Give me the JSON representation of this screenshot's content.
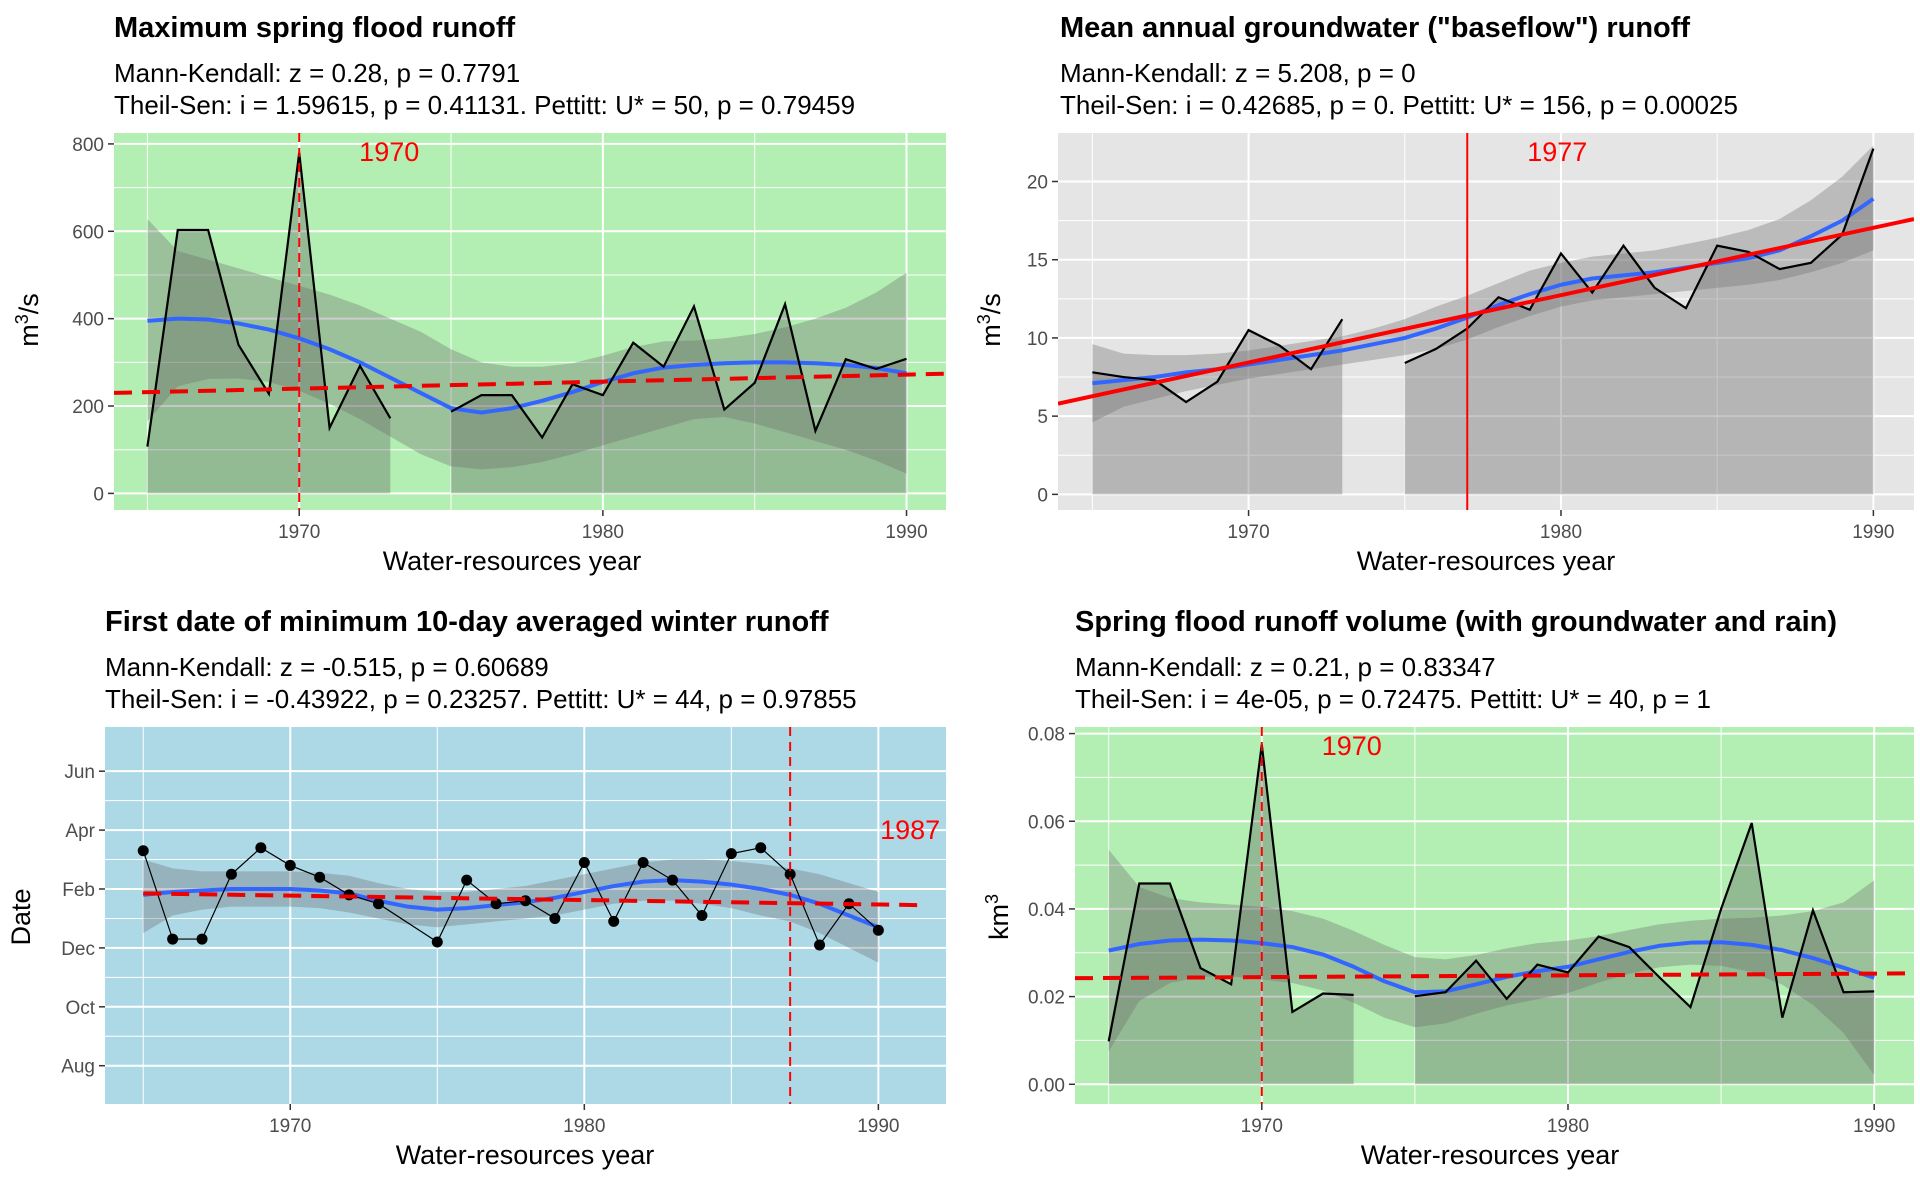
{
  "chart_data": [
    {
      "type": "line",
      "title": "Maximum spring flood runoff",
      "stats_line1": "Mann-Kendall: z = 0.28, p = 0.7791",
      "stats_line2": "Theil-Sen: i = 1.59615, p = 0.41131. Pettitt: U* = 50, p = 0.79459",
      "xlabel": "Water-resources year",
      "ylabel_base": "m",
      "ylabel_sup": "3",
      "ylabel_tail": "/s",
      "panel_background": "#b3eeb3",
      "xlim": [
        1963.9,
        1991.3
      ],
      "ylim": [
        -38,
        825
      ],
      "x_ticks": [
        1970,
        1980,
        1990
      ],
      "x_tick_labels": [
        "1970",
        "1980",
        "1990"
      ],
      "y_ticks": [
        0,
        200,
        400,
        600,
        800
      ],
      "y_tick_labels": [
        "0",
        "200",
        "400",
        "600",
        "800"
      ],
      "series_observed": [
        {
          "x": [
            1965,
            1966,
            1967,
            1968,
            1969,
            1970,
            1971,
            1972,
            1973
          ],
          "y": [
            107,
            603,
            603,
            340,
            228,
            780,
            150,
            292,
            172
          ]
        },
        {
          "x": [
            1975,
            1976,
            1977,
            1978,
            1979,
            1980,
            1981,
            1982,
            1983,
            1984,
            1985,
            1986,
            1987,
            1988,
            1989,
            1990
          ],
          "y": [
            187,
            225,
            225,
            128,
            250,
            225,
            345,
            290,
            428,
            192,
            253,
            433,
            143,
            307,
            285,
            308
          ]
        }
      ],
      "smooth": {
        "x": [
          1965,
          1966,
          1967,
          1968,
          1969,
          1970,
          1971,
          1972,
          1973,
          1974,
          1975,
          1976,
          1977,
          1978,
          1979,
          1980,
          1981,
          1982,
          1983,
          1984,
          1985,
          1986,
          1987,
          1988,
          1989,
          1990
        ],
        "y": [
          395,
          400,
          398,
          389,
          375,
          355,
          330,
          300,
          265,
          230,
          195,
          185,
          195,
          212,
          232,
          255,
          275,
          288,
          294,
          298,
          300,
          300,
          298,
          294,
          287,
          275
        ]
      },
      "band_upper": [
        628,
        555,
        535,
        515,
        495,
        475,
        455,
        430,
        400,
        370,
        330,
        300,
        290,
        290,
        298,
        315,
        335,
        348,
        350,
        355,
        365,
        380,
        400,
        425,
        460,
        505
      ],
      "band_lower": [
        165,
        245,
        262,
        263,
        255,
        235,
        205,
        170,
        130,
        90,
        62,
        55,
        60,
        72,
        90,
        110,
        130,
        150,
        170,
        175,
        160,
        140,
        120,
        100,
        75,
        45
      ],
      "trend": {
        "x": [
          1963.9,
          1991.3
        ],
        "y": [
          230,
          274
        ],
        "style": "dashed",
        "color": "#ee0000"
      },
      "change_point": {
        "x": 1970,
        "label": "1970",
        "style": "dashed"
      }
    },
    {
      "type": "line",
      "title": "Mean annual groundwater (\"baseflow\") runoff",
      "stats_line1": "Mann-Kendall: z = 5.208, p = 0",
      "stats_line2": "Theil-Sen: i = 0.42685, p = 0. Pettitt: U* = 156, p = 0.00025",
      "xlabel": "Water-resources year",
      "ylabel_base": "m",
      "ylabel_sup": "3",
      "ylabel_tail": "/s",
      "panel_background": "#e5e5e5",
      "xlim": [
        1963.9,
        1991.3
      ],
      "ylim": [
        -1.0,
        23.1
      ],
      "x_ticks": [
        1970,
        1980,
        1990
      ],
      "x_tick_labels": [
        "1970",
        "1980",
        "1990"
      ],
      "y_ticks": [
        0,
        5,
        10,
        15,
        20
      ],
      "y_tick_labels": [
        "0",
        "5",
        "10",
        "15",
        "20"
      ],
      "series_observed": [
        {
          "x": [
            1965,
            1966,
            1967,
            1968,
            1969,
            1970,
            1971,
            1972,
            1973
          ],
          "y": [
            7.8,
            7.5,
            7.3,
            5.9,
            7.2,
            10.5,
            9.5,
            8.0,
            11.2
          ]
        },
        {
          "x": [
            1975,
            1976,
            1977,
            1978,
            1979,
            1980,
            1981,
            1982,
            1983,
            1984,
            1985,
            1986,
            1987,
            1988,
            1989,
            1990
          ],
          "y": [
            8.4,
            9.3,
            10.6,
            12.6,
            11.8,
            15.4,
            12.9,
            15.9,
            13.2,
            11.9,
            15.9,
            15.5,
            14.4,
            14.8,
            16.6,
            22.1
          ]
        }
      ],
      "smooth": {
        "x": [
          1965,
          1966,
          1967,
          1968,
          1969,
          1970,
          1971,
          1972,
          1973,
          1974,
          1975,
          1976,
          1977,
          1978,
          1979,
          1980,
          1981,
          1982,
          1983,
          1984,
          1985,
          1986,
          1987,
          1988,
          1989,
          1990
        ],
        "y": [
          7.1,
          7.3,
          7.5,
          7.8,
          8.0,
          8.3,
          8.6,
          8.9,
          9.2,
          9.6,
          10.0,
          10.6,
          11.3,
          12.1,
          12.8,
          13.4,
          13.8,
          14.0,
          14.2,
          14.5,
          14.8,
          15.1,
          15.6,
          16.5,
          17.5,
          18.9
        ]
      },
      "band_upper": [
        9.6,
        9.0,
        8.9,
        8.9,
        9.0,
        9.2,
        9.5,
        9.8,
        10.1,
        10.6,
        11.2,
        12.0,
        12.7,
        13.5,
        14.3,
        14.8,
        15.2,
        15.4,
        15.6,
        16.0,
        16.4,
        16.9,
        17.6,
        18.8,
        20.3,
        22.3
      ],
      "band_lower": [
        4.6,
        5.6,
        6.1,
        6.6,
        7.0,
        7.4,
        7.7,
        8.0,
        8.3,
        8.6,
        8.9,
        9.3,
        9.9,
        10.7,
        11.4,
        12.0,
        12.4,
        12.6,
        12.8,
        13.0,
        13.2,
        13.4,
        13.7,
        14.2,
        14.8,
        15.6
      ],
      "trend": {
        "x": [
          1963.9,
          1991.3
        ],
        "y": [
          5.8,
          17.6
        ],
        "style": "solid",
        "color": "#ff0000"
      },
      "change_point": {
        "x": 1977,
        "label": "1977",
        "style": "solid"
      }
    },
    {
      "type": "line",
      "title": "First date of minimum 10-day averaged winter runoff",
      "stats_line1": "Mann-Kendall: z = -0.515, p = 0.60689",
      "stats_line2": "Theil-Sen: i = -0.43922, p = 0.23257. Pettitt: U* = 44, p = 0.97855",
      "xlabel": "Water-resources year",
      "ylabel_base": "Date",
      "ylabel_sup": "",
      "ylabel_tail": "",
      "panel_background": "#add8e6",
      "y_unit": "months since August (tick labels show month names)",
      "xlim": [
        1963.7,
        1992.3
      ],
      "ylim": [
        -1.3,
        11.5
      ],
      "x_ticks": [
        1970,
        1980,
        1990
      ],
      "x_tick_labels": [
        "1970",
        "1980",
        "1990"
      ],
      "y_ticks": [
        0,
        2,
        4,
        6,
        8,
        10
      ],
      "y_tick_labels": [
        "Aug",
        "Oct",
        "Dec",
        "Feb",
        "Apr",
        "Jun"
      ],
      "series_observed": [
        {
          "x": [
            1965,
            1966,
            1967,
            1968,
            1969,
            1970,
            1971,
            1972,
            1973,
            1975,
            1976,
            1977,
            1978,
            1979,
            1980,
            1981,
            1982,
            1983,
            1984,
            1985,
            1986,
            1987,
            1988,
            1989,
            1990
          ],
          "y": [
            7.3,
            4.3,
            4.3,
            6.5,
            7.4,
            6.8,
            6.4,
            5.8,
            5.5,
            4.2,
            6.3,
            5.5,
            5.6,
            5.0,
            6.9,
            4.9,
            6.9,
            6.3,
            5.1,
            7.2,
            7.4,
            6.5,
            4.1,
            5.5,
            4.6
          ]
        }
      ],
      "smooth": {
        "x": [
          1965,
          1966,
          1967,
          1968,
          1969,
          1970,
          1971,
          1972,
          1973,
          1974,
          1975,
          1976,
          1977,
          1978,
          1979,
          1980,
          1981,
          1982,
          1983,
          1984,
          1985,
          1986,
          1987,
          1988,
          1989,
          1990
        ],
        "y": [
          5.8,
          5.9,
          5.95,
          6.0,
          6.0,
          6.0,
          5.95,
          5.85,
          5.6,
          5.4,
          5.3,
          5.35,
          5.45,
          5.55,
          5.7,
          5.9,
          6.1,
          6.25,
          6.3,
          6.25,
          6.15,
          6.0,
          5.8,
          5.5,
          5.1,
          4.7
        ]
      },
      "band_upper": [
        7.0,
        6.7,
        6.6,
        6.6,
        6.6,
        6.6,
        6.55,
        6.45,
        6.2,
        6.0,
        5.9,
        5.9,
        6.0,
        6.1,
        6.3,
        6.5,
        6.7,
        6.9,
        7.0,
        7.0,
        6.95,
        6.85,
        6.7,
        6.5,
        6.2,
        5.9
      ],
      "band_lower": [
        4.5,
        5.1,
        5.3,
        5.4,
        5.4,
        5.4,
        5.35,
        5.2,
        5.0,
        4.8,
        4.7,
        4.8,
        4.9,
        5.0,
        5.1,
        5.3,
        5.5,
        5.6,
        5.6,
        5.5,
        5.35,
        5.1,
        4.9,
        4.5,
        4.0,
        3.5
      ],
      "trend": {
        "x": [
          1965,
          1991.6
        ],
        "y": [
          5.85,
          5.45
        ],
        "style": "dashed",
        "color": "#ee0000"
      },
      "change_point": {
        "x": 1987,
        "label": "1987",
        "style": "dashed"
      },
      "markers": true
    },
    {
      "type": "line",
      "title": "Spring flood runoff volume (with groundwater and rain)",
      "stats_line1": "Mann-Kendall: z = 0.21, p = 0.83347",
      "stats_line2": "Theil-Sen: i = 4e-05, p = 0.72475. Pettitt: U* = 40, p = 1",
      "xlabel": "Water-resources year",
      "ylabel_base": "km",
      "ylabel_sup": "3",
      "ylabel_tail": "",
      "panel_background": "#b3eeb3",
      "xlim": [
        1963.9,
        1991.3
      ],
      "ylim": [
        -0.0045,
        0.0815
      ],
      "x_ticks": [
        1970,
        1980,
        1990
      ],
      "x_tick_labels": [
        "1970",
        "1980",
        "1990"
      ],
      "y_ticks": [
        0.0,
        0.02,
        0.04,
        0.06,
        0.08
      ],
      "y_tick_labels": [
        "0.00",
        "0.02",
        "0.04",
        "0.06",
        "0.08"
      ],
      "series_observed": [
        {
          "x": [
            1965,
            1966,
            1967,
            1968,
            1969,
            1970,
            1971,
            1972,
            1973
          ],
          "y": [
            0.0098,
            0.0458,
            0.0458,
            0.0265,
            0.0228,
            0.0775,
            0.0165,
            0.0207,
            0.0204
          ]
        },
        {
          "x": [
            1975,
            1976,
            1977,
            1978,
            1979,
            1980,
            1981,
            1982,
            1983,
            1984,
            1985,
            1986,
            1987,
            1988,
            1989,
            1990
          ],
          "y": [
            0.0201,
            0.021,
            0.0282,
            0.0195,
            0.0273,
            0.0255,
            0.0337,
            0.0313,
            0.0243,
            0.0176,
            0.04,
            0.0596,
            0.0152,
            0.0397,
            0.021,
            0.0212
          ]
        }
      ],
      "smooth": {
        "x": [
          1965,
          1966,
          1967,
          1968,
          1969,
          1970,
          1971,
          1972,
          1973,
          1974,
          1975,
          1976,
          1977,
          1978,
          1979,
          1980,
          1981,
          1982,
          1983,
          1984,
          1985,
          1986,
          1987,
          1988,
          1989,
          1990
        ],
        "y": [
          0.0305,
          0.032,
          0.0328,
          0.033,
          0.0328,
          0.0322,
          0.0313,
          0.0296,
          0.0268,
          0.0235,
          0.021,
          0.0212,
          0.0228,
          0.0245,
          0.0258,
          0.0268,
          0.0285,
          0.0302,
          0.0316,
          0.0323,
          0.0324,
          0.0318,
          0.0306,
          0.0288,
          0.0266,
          0.0243
        ]
      },
      "band_upper": [
        0.0535,
        0.045,
        0.0425,
        0.0415,
        0.041,
        0.0405,
        0.0395,
        0.0378,
        0.035,
        0.0318,
        0.029,
        0.0285,
        0.0295,
        0.031,
        0.0322,
        0.0328,
        0.0338,
        0.0352,
        0.0365,
        0.0373,
        0.0378,
        0.038,
        0.0385,
        0.0395,
        0.0415,
        0.0465
      ],
      "band_lower": [
        0.0075,
        0.019,
        0.0231,
        0.0245,
        0.0246,
        0.0239,
        0.0231,
        0.0214,
        0.0186,
        0.0152,
        0.013,
        0.0139,
        0.0161,
        0.018,
        0.0194,
        0.0208,
        0.0232,
        0.0252,
        0.0267,
        0.0273,
        0.027,
        0.0256,
        0.0227,
        0.0181,
        0.0117,
        0.0021
      ],
      "trend": {
        "x": [
          1963.9,
          1991.3
        ],
        "y": [
          0.0242,
          0.0253
        ],
        "style": "dashed",
        "color": "#ee0000"
      },
      "change_point": {
        "x": 1970,
        "label": "1970",
        "style": "dashed"
      }
    }
  ]
}
